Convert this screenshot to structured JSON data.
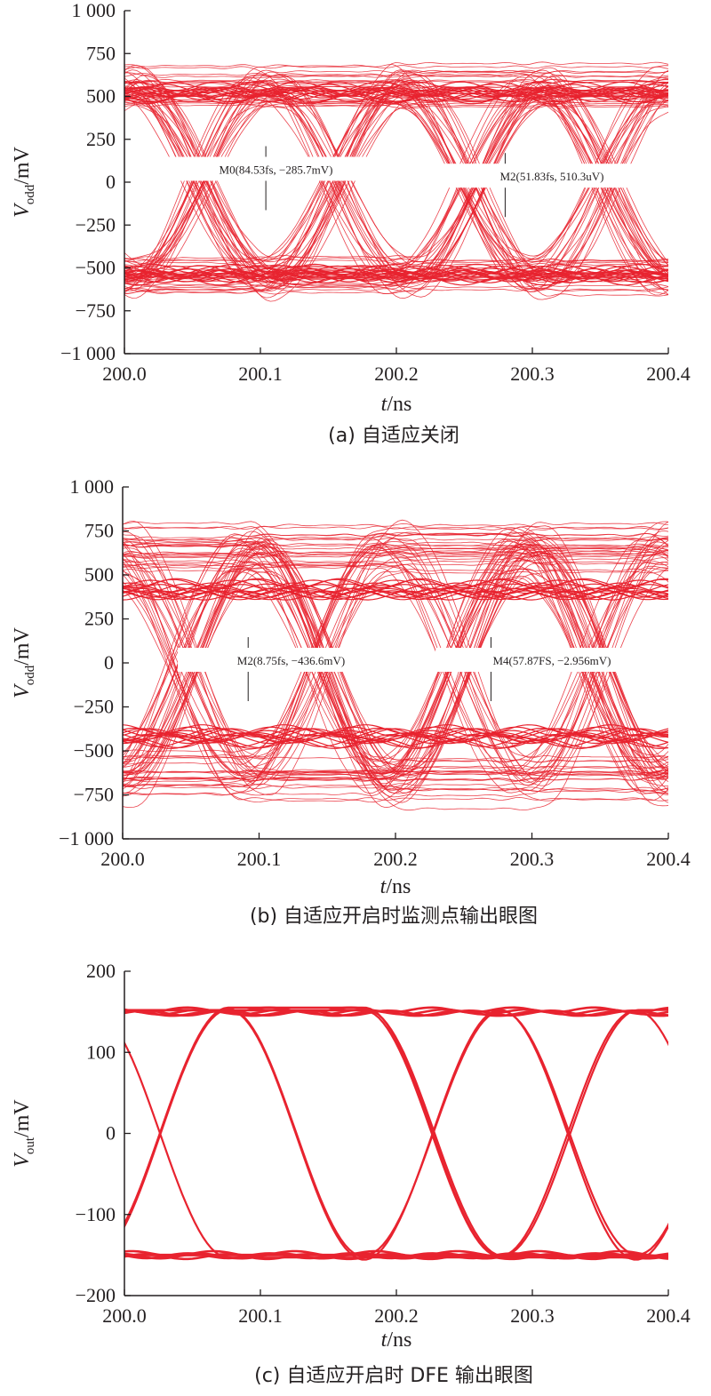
{
  "figure": {
    "trace_color": "#e8232f",
    "axis_color": "#231f20"
  },
  "chart_data": [
    {
      "id": "a",
      "type": "line",
      "caption": "(a) 自适应关闭",
      "xlabel": "t/ns",
      "ylabel": "Vodd/mV",
      "ylabel_main": "V",
      "ylabel_sub": "odd",
      "ylabel_unit": "/mV",
      "xlabel_var": "t",
      "xlabel_unit": "/ns",
      "xlim": [
        200.0,
        200.4
      ],
      "ylim": [
        -1000,
        1000
      ],
      "x_ticks": [
        200.0,
        200.1,
        200.2,
        200.3,
        200.4
      ],
      "x_tick_labels": [
        "200.0",
        "200.1",
        "200.2",
        "200.3",
        "200.4"
      ],
      "y_ticks": [
        1000,
        750,
        500,
        250,
        0,
        -250,
        -500,
        -750,
        -1000
      ],
      "y_tick_labels": [
        "1 000",
        "750",
        "500",
        "250",
        "0",
        "−250",
        "−500",
        "−750",
        "−1 000"
      ],
      "eye": {
        "amplitude": 560,
        "spread": 110,
        "crossings": [
          200.055,
          200.155,
          200.255,
          200.355
        ],
        "bit_time": 0.1,
        "noisy": true,
        "trace_count": 90,
        "rail_levels": [
          520,
          -540
        ]
      },
      "markers": [
        {
          "label": "M0(84.53fs, −285.7mV)",
          "x": 200.104,
          "y": 70
        },
        {
          "label": "M2(51.83fs, 510.3uV)",
          "x": 200.28,
          "y": 30
        }
      ]
    },
    {
      "id": "b",
      "type": "line",
      "caption": "(b) 自适应开启时监测点输出眼图",
      "xlabel": "t/ns",
      "ylabel": "Vodd/mV",
      "ylabel_main": "V",
      "ylabel_sub": "odd",
      "ylabel_unit": "/mV",
      "xlabel_var": "t",
      "xlabel_unit": "/ns",
      "xlim": [
        200.0,
        200.4
      ],
      "ylim": [
        -1000,
        1000
      ],
      "x_ticks": [
        200.0,
        200.1,
        200.2,
        200.3,
        200.4
      ],
      "x_tick_labels": [
        "200.0",
        "200.1",
        "200.2",
        "200.3",
        "200.4"
      ],
      "y_ticks": [
        1000,
        750,
        500,
        250,
        0,
        -250,
        -500,
        -750,
        -1000
      ],
      "y_tick_labels": [
        "1 000",
        "750",
        "500",
        "250",
        "0",
        "−250",
        "−500",
        "−750",
        "−1 000"
      ],
      "eye": {
        "amplitude": 650,
        "spread": 150,
        "crossings": [
          200.045,
          200.145,
          200.245,
          200.345
        ],
        "bit_time": 0.1,
        "noisy": true,
        "trace_count": 90,
        "rail_levels": [
          420,
          -420
        ]
      },
      "markers": [
        {
          "label": "M2(8.75fs, −436.6mV)",
          "x": 200.092,
          "y": 10
        },
        {
          "label": "M4(57.87FS, −2.956mV)",
          "x": 200.27,
          "y": 10
        }
      ]
    },
    {
      "id": "c",
      "type": "line",
      "caption": "(c) 自适应开启时 DFE 输出眼图",
      "xlabel": "t/ns",
      "ylabel": "Vout/mV",
      "ylabel_main": "V",
      "ylabel_sub": "out",
      "ylabel_unit": "/mV",
      "xlabel_var": "t",
      "xlabel_unit": "/ns",
      "xlim": [
        200.0,
        200.4
      ],
      "ylim": [
        -200,
        200
      ],
      "x_ticks": [
        200.0,
        200.1,
        200.2,
        200.3,
        200.4
      ],
      "x_tick_labels": [
        "200.0",
        "200.1",
        "200.2",
        "200.3",
        "200.4"
      ],
      "y_ticks": [
        200,
        100,
        0,
        -100,
        -200
      ],
      "y_tick_labels": [
        "200",
        "100",
        "0",
        "−100",
        "−200"
      ],
      "eye": {
        "amplitude": 152,
        "spread": 4,
        "crossings": [
          200.027,
          200.127,
          200.227,
          200.327
        ],
        "bit_time": 0.1,
        "noisy": false,
        "trace_count": 8,
        "rail_levels": [
          152,
          -152
        ]
      },
      "markers": []
    }
  ]
}
